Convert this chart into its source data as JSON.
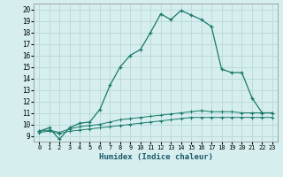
{
  "xlabel": "Humidex (Indice chaleur)",
  "x_ticks": [
    0,
    1,
    2,
    3,
    4,
    5,
    6,
    7,
    8,
    9,
    10,
    11,
    12,
    13,
    14,
    15,
    16,
    17,
    18,
    19,
    20,
    21,
    22,
    23
  ],
  "ylim": [
    8.5,
    20.5
  ],
  "xlim": [
    -0.5,
    23.5
  ],
  "yticks": [
    9,
    10,
    11,
    12,
    13,
    14,
    15,
    16,
    17,
    18,
    19,
    20
  ],
  "bg_color": "#d6eeee",
  "grid_color": "#b8d8d8",
  "line_color": "#1a7a6a",
  "line1_x": [
    0,
    1,
    2,
    3,
    4,
    5,
    6,
    7,
    8,
    9,
    10,
    11,
    12,
    13,
    14,
    15,
    16,
    17,
    18,
    19,
    20,
    21,
    22,
    23
  ],
  "line1_y": [
    9.4,
    9.7,
    8.7,
    9.7,
    10.1,
    10.2,
    11.3,
    13.4,
    15.0,
    16.0,
    16.5,
    18.0,
    19.6,
    19.1,
    19.9,
    19.5,
    19.1,
    18.5,
    14.8,
    14.5,
    14.5,
    12.3,
    11.0,
    11.0
  ],
  "line2_x": [
    0,
    1,
    2,
    3,
    4,
    5,
    6,
    7,
    8,
    9,
    10,
    11,
    12,
    13,
    14,
    15,
    16,
    17,
    18,
    19,
    20,
    21,
    22,
    23
  ],
  "line2_y": [
    9.4,
    9.5,
    9.3,
    9.6,
    9.8,
    9.9,
    10.0,
    10.2,
    10.4,
    10.5,
    10.6,
    10.7,
    10.8,
    10.9,
    11.0,
    11.1,
    11.2,
    11.1,
    11.1,
    11.1,
    11.0,
    11.0,
    11.0,
    11.0
  ],
  "line3_x": [
    0,
    1,
    2,
    3,
    4,
    5,
    6,
    7,
    8,
    9,
    10,
    11,
    12,
    13,
    14,
    15,
    16,
    17,
    18,
    19,
    20,
    21,
    22,
    23
  ],
  "line3_y": [
    9.3,
    9.4,
    9.2,
    9.4,
    9.5,
    9.6,
    9.7,
    9.8,
    9.9,
    10.0,
    10.1,
    10.2,
    10.3,
    10.4,
    10.5,
    10.6,
    10.6,
    10.6,
    10.6,
    10.6,
    10.6,
    10.6,
    10.6,
    10.6
  ]
}
